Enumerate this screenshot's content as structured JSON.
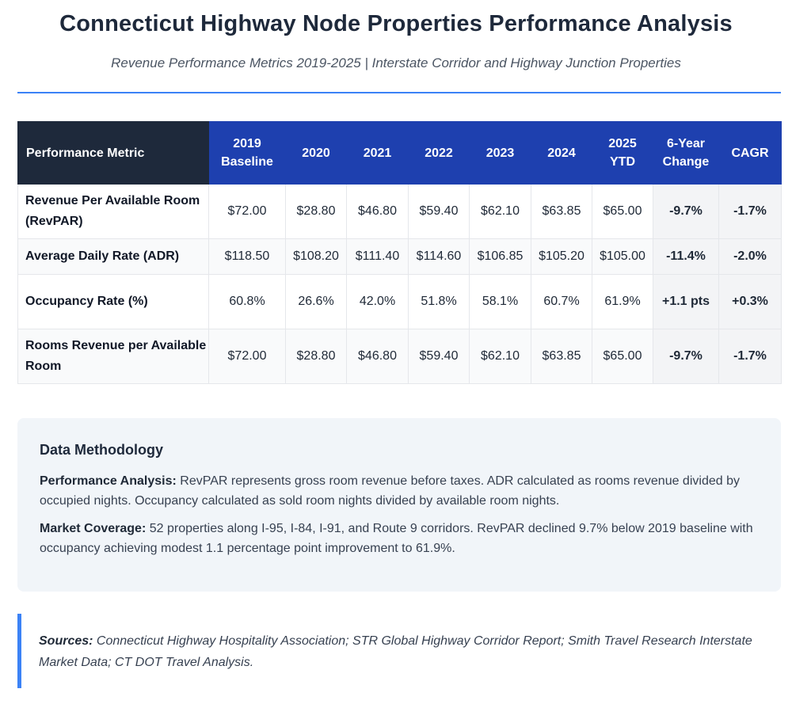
{
  "header": {
    "title": "Connecticut Highway Node Properties Performance Analysis",
    "subtitle": "Revenue Performance Metrics 2019-2025 | Interstate Corridor and Highway Junction Properties"
  },
  "table": {
    "headers": [
      "Performance Metric",
      "2019 Baseline",
      "2020",
      "2021",
      "2022",
      "2023",
      "2024",
      "2025 YTD",
      "6-Year Change",
      "CAGR"
    ],
    "rows": [
      {
        "metric": "Revenue Per Available Room (RevPAR)",
        "values": [
          "$72.00",
          "$28.80",
          "$46.80",
          "$59.40",
          "$62.10",
          "$63.85",
          "$65.00"
        ],
        "change": "-9.7%",
        "cagr": "-1.7%"
      },
      {
        "metric": "Average Daily Rate (ADR)",
        "values": [
          "$118.50",
          "$108.20",
          "$111.40",
          "$114.60",
          "$106.85",
          "$105.20",
          "$105.00"
        ],
        "change": "-11.4%",
        "cagr": "-2.0%"
      },
      {
        "metric": "Occupancy Rate (%)",
        "values": [
          "60.8%",
          "26.6%",
          "42.0%",
          "51.8%",
          "58.1%",
          "60.7%",
          "61.9%"
        ],
        "change": "+1.1 pts",
        "cagr": "+0.3%"
      },
      {
        "metric": "Rooms Revenue per Available Room",
        "values": [
          "$72.00",
          "$28.80",
          "$46.80",
          "$59.40",
          "$62.10",
          "$63.85",
          "$65.00"
        ],
        "change": "-9.7%",
        "cagr": "-1.7%"
      }
    ]
  },
  "methodology": {
    "title": "Data Methodology",
    "performance_label": "Performance Analysis:",
    "performance_text": " RevPAR represents gross room revenue before taxes. ADR calculated as rooms revenue divided by occupied nights. Occupancy calculated as sold room nights divided by available room nights.",
    "coverage_label": "Market Coverage:",
    "coverage_text": " 52 properties along I-95, I-84, I-91, and Route 9 corridors. RevPAR declined 9.7% below 2019 baseline with occupancy achieving modest 1.1 percentage point improvement to 61.9%."
  },
  "sources": {
    "label": "Sources:",
    "text": " Connecticut Highway Hospitality Association; STR Global Highway Corridor Report; Smith Travel Research Interstate Market Data; CT DOT Travel Analysis."
  }
}
